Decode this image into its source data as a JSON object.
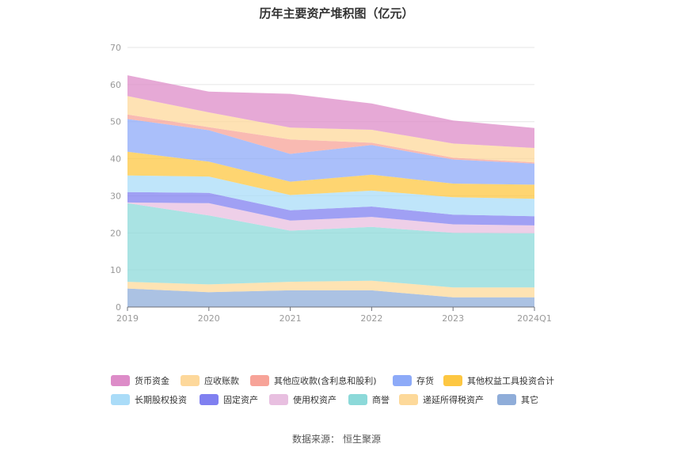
{
  "chart_data": {
    "type": "area",
    "stacked": true,
    "title": "历年主要资产堆积图（亿元）",
    "categories": [
      "2019",
      "2020",
      "2021",
      "2022",
      "2023",
      "2024Q1"
    ],
    "ylim": [
      0,
      70
    ],
    "yticks": [
      0,
      10,
      20,
      30,
      40,
      50,
      60,
      70
    ],
    "grid": true,
    "legend_position": "bottom",
    "series": [
      {
        "name": "其它",
        "color": "#8fadd9",
        "values": [
          5.0,
          4.0,
          4.5,
          4.5,
          2.6,
          2.6
        ]
      },
      {
        "name": "递延所得税资产",
        "color": "#fdd99a",
        "values": [
          1.8,
          2.1,
          2.3,
          2.6,
          2.7,
          2.7
        ]
      },
      {
        "name": "商誉",
        "color": "#8cd9d9",
        "values": [
          21.2,
          18.6,
          13.8,
          14.5,
          14.7,
          14.6
        ]
      },
      {
        "name": "使用权资产",
        "color": "#e8bfe0",
        "values": [
          0.2,
          3.3,
          2.7,
          2.7,
          2.3,
          2.1
        ]
      },
      {
        "name": "固定资产",
        "color": "#8080f0",
        "values": [
          2.8,
          2.8,
          2.8,
          2.8,
          2.6,
          2.5
        ]
      },
      {
        "name": "长期股权投资",
        "color": "#aadcf8",
        "values": [
          4.5,
          4.4,
          4.1,
          4.3,
          4.7,
          4.7
        ]
      },
      {
        "name": "其他权益工具投资合计",
        "color": "#fdc742",
        "values": [
          6.4,
          4.0,
          3.6,
          4.3,
          3.7,
          3.8
        ]
      },
      {
        "name": "存货",
        "color": "#8daaf8",
        "values": [
          8.8,
          8.5,
          7.5,
          8.0,
          6.5,
          5.7
        ]
      },
      {
        "name": "其他应收款(含利息和股利)",
        "color": "#f7a398",
        "values": [
          1.2,
          0.8,
          3.9,
          0.6,
          0.5,
          0.3
        ]
      },
      {
        "name": "应收账款",
        "color": "#fdd89b",
        "values": [
          5.0,
          4.0,
          3.2,
          3.5,
          3.8,
          3.9
        ]
      },
      {
        "name": "货币资金",
        "color": "#dd8cc8",
        "values": [
          5.6,
          5.6,
          9.1,
          7.1,
          6.2,
          5.4
        ]
      }
    ]
  },
  "legend_order": [
    "货币资金",
    "应收账款",
    "其他应收款(含利息和股利)",
    "存货",
    "其他权益工具投资合计",
    "长期股权投资",
    "固定资产",
    "使用权资产",
    "商誉",
    "递延所得税资产",
    "其它"
  ],
  "source": {
    "label": "数据来源：",
    "value": "恒生聚源"
  }
}
